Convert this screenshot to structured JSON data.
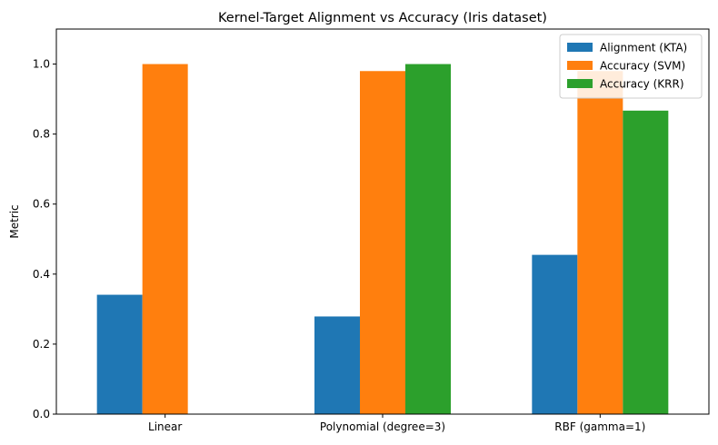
{
  "chart_data": {
    "type": "bar",
    "title": "Kernel-Target Alignment vs Accuracy (Iris dataset)",
    "xlabel": "",
    "ylabel": "Metric",
    "ylim": [
      0,
      1.1
    ],
    "yticks": [
      "0.0",
      "0.2",
      "0.4",
      "0.6",
      "0.8",
      "1.0"
    ],
    "categories": [
      "Linear",
      "Polynomial (degree=3)",
      "RBF (gamma=1)"
    ],
    "series": [
      {
        "name": "Alignment (KTA)",
        "color": "#1f77b4",
        "values": [
          0.341,
          0.279,
          0.455
        ]
      },
      {
        "name": "Accuracy (SVM)",
        "color": "#ff7f0e",
        "values": [
          1.0,
          0.98,
          0.98
        ]
      },
      {
        "name": "Accuracy (KRR)",
        "color": "#2ca02c",
        "values": [
          null,
          1.0,
          0.867
        ]
      }
    ],
    "grid": false,
    "legend_position": "top-right"
  }
}
